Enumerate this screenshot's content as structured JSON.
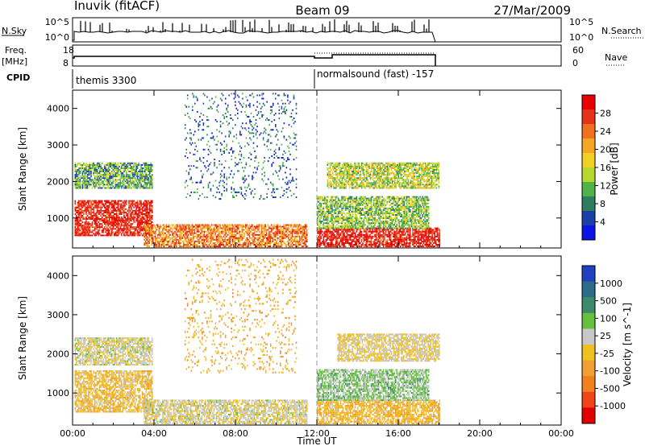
{
  "header": {
    "station": "Inuvik (fitACF)",
    "beam": "Beam 09",
    "date": "27/Mar/2009"
  },
  "left_labels": {
    "nsky": "N.Sky",
    "freq_top": "Freq.",
    "freq_unit": "[MHz]",
    "cpid": "CPID"
  },
  "right_labels": {
    "nsearch": "N.Search",
    "nave": "Nave"
  },
  "sky_axis": {
    "top": "10^5",
    "bottom": "10^0"
  },
  "freq_axis": {
    "top": "18",
    "bottom": "8"
  },
  "nave_axis": {
    "top": "60",
    "bottom": "0"
  },
  "cpid_segments": [
    {
      "label": "themis 3300",
      "start_hour": 0,
      "end_hour": 12
    },
    {
      "label": "normalsound (fast) -157",
      "start_hour": 12,
      "end_hour": 18
    }
  ],
  "colors": {
    "power_scale": [
      "#0a14e6",
      "#1a3fa8",
      "#2e7d5f",
      "#4fb34a",
      "#b6d82a",
      "#f0d020",
      "#f5a623",
      "#f07020",
      "#e83218",
      "#e60000"
    ],
    "velocity_scale": [
      "#2040c0",
      "#2e6a8a",
      "#3c8a6a",
      "#66c040",
      "#c8c8c8",
      "#f0c020",
      "#f0a030",
      "#f08020",
      "#ee4418",
      "#e00000"
    ]
  },
  "chart_data": [
    {
      "type": "heatmap",
      "name": "power",
      "xlabel": "",
      "ylabel": "Slant Range [km]",
      "xlim": [
        0,
        24
      ],
      "ylim": [
        180,
        4500
      ],
      "yticks": [
        1000,
        2000,
        3000,
        4000
      ],
      "colorbar": {
        "label": "Power [dB]",
        "ticks": [
          "28",
          "24",
          "20",
          "16",
          "12",
          "8",
          "4"
        ],
        "range": [
          0,
          30
        ]
      },
      "regions": [
        {
          "t0": 0.1,
          "t1": 3.9,
          "r0": 500,
          "r1": 1450,
          "value": 28
        },
        {
          "t0": 0.1,
          "t1": 3.9,
          "r0": 1800,
          "r1": 2500,
          "value": 10
        },
        {
          "t0": 3.5,
          "t1": 11.5,
          "r0": 200,
          "r1": 800,
          "value": 22
        },
        {
          "t0": 12.0,
          "t1": 18.0,
          "r0": 200,
          "r1": 700,
          "value": 28
        },
        {
          "t0": 12.0,
          "t1": 17.5,
          "r0": 700,
          "r1": 1600,
          "value": 12
        },
        {
          "t0": 12.5,
          "t1": 18.0,
          "r0": 1800,
          "r1": 2500,
          "value": 14
        },
        {
          "t0": 5.5,
          "t1": 11.0,
          "r0": 1500,
          "r1": 4400,
          "value": 6
        }
      ]
    },
    {
      "type": "heatmap",
      "name": "velocity",
      "xlabel": "Time UT",
      "ylabel": "Slant Range [km]",
      "xlim": [
        0,
        24
      ],
      "ylim": [
        180,
        4500
      ],
      "xticks": [
        "00:00",
        "04:00",
        "08:00",
        "12:00",
        "16:00",
        "20:00",
        "00:00"
      ],
      "yticks": [
        1000,
        2000,
        3000,
        4000
      ],
      "colorbar": {
        "label": "Velocity [m s^-1]",
        "ticks": [
          "1000",
          "500",
          "100",
          "25",
          "-25",
          "-100",
          "-500",
          "-1000"
        ],
        "range": [
          -1250,
          1250
        ]
      },
      "regions": [
        {
          "t0": 0.1,
          "t1": 3.9,
          "r0": 500,
          "r1": 1550,
          "value": -150
        },
        {
          "t0": 0.1,
          "t1": 3.9,
          "r0": 1700,
          "r1": 2400,
          "value": 60
        },
        {
          "t0": 3.5,
          "t1": 11.5,
          "r0": 200,
          "r1": 800,
          "value": 40
        },
        {
          "t0": 12.0,
          "t1": 18.0,
          "r0": 200,
          "r1": 800,
          "value": -200
        },
        {
          "t0": 12.0,
          "t1": 17.5,
          "r0": 800,
          "r1": 1600,
          "value": 300
        },
        {
          "t0": 13.0,
          "t1": 18.0,
          "r0": 1800,
          "r1": 2500,
          "value": 0
        },
        {
          "t0": 5.5,
          "t1": 11.0,
          "r0": 1500,
          "r1": 4400,
          "value": -300
        }
      ]
    }
  ]
}
